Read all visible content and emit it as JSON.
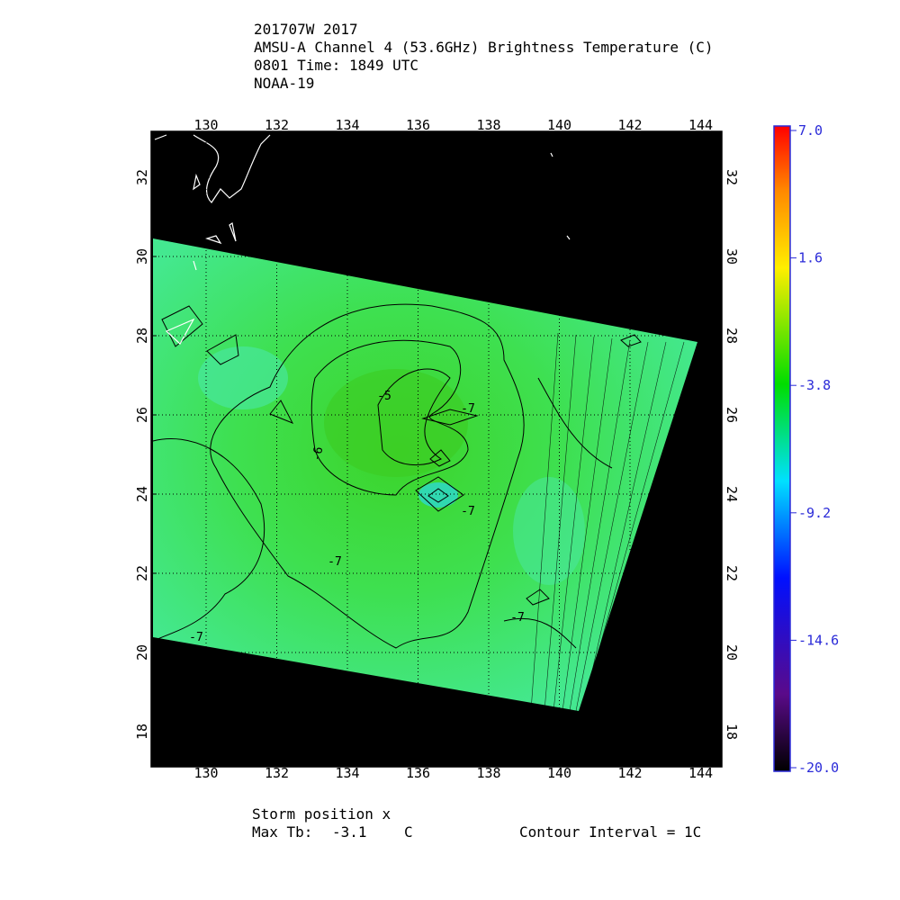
{
  "header": {
    "lines": [
      "201707W 2017",
      "AMSU-A Channel 4 (53.6GHz) Brightness Temperature (C)",
      "0801 Time: 1849 UTC",
      "NOAA-19"
    ]
  },
  "map": {
    "lon_ticks": [
      "130",
      "132",
      "134",
      "136",
      "138",
      "140",
      "142",
      "144"
    ],
    "lat_ticks": [
      "32",
      "30",
      "28",
      "26",
      "24",
      "22",
      "20",
      "18"
    ],
    "contour_labels": [
      "-5",
      "-6",
      "-7",
      "-7",
      "-7",
      "-7",
      "-7"
    ]
  },
  "colorbar": {
    "ticks": [
      "7.0",
      "1.6",
      "-3.8",
      "-9.2",
      "-14.6",
      "-20.0"
    ]
  },
  "footer": {
    "storm": "Storm position x",
    "max_label": "Max Tb:",
    "max_value": "-3.1",
    "max_unit": "C",
    "interval": "Contour Interval = 1C"
  }
}
